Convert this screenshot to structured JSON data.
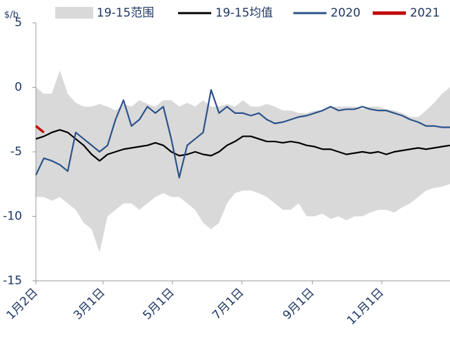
{
  "chart_data": {
    "type": "line",
    "y_label": "$/b",
    "x": [
      0,
      7,
      14,
      21,
      28,
      35,
      42,
      49,
      56,
      63,
      70,
      77,
      84,
      91,
      98,
      105,
      112,
      119,
      126,
      133,
      140,
      147,
      154,
      161,
      168,
      175,
      182,
      189,
      196,
      203,
      210,
      217,
      224,
      231,
      238,
      245,
      252,
      259,
      266,
      273,
      280,
      287,
      294,
      301,
      308,
      315,
      322,
      329,
      336,
      343,
      350,
      357,
      364
    ],
    "xlim": [
      0,
      364
    ],
    "xticks": [
      {
        "value": 0,
        "label": "1月2日"
      },
      {
        "value": 59,
        "label": "3月1日"
      },
      {
        "value": 120,
        "label": "5月1日"
      },
      {
        "value": 181,
        "label": "7月1日"
      },
      {
        "value": 243,
        "label": "9月1日"
      },
      {
        "value": 304,
        "label": "11月1日"
      }
    ],
    "ylim": [
      -15,
      5
    ],
    "yticks": [
      5,
      0,
      -5,
      -10,
      -15
    ],
    "range": {
      "name": "19-15范围",
      "color": "#d9d9d9",
      "upper": [
        0,
        -0.5,
        -0.5,
        1.3,
        -0.5,
        -1.2,
        -1.5,
        -1.5,
        -1.3,
        -1.5,
        -1.8,
        -1.3,
        -1.5,
        -1,
        -1.3,
        -1.5,
        -1,
        -1,
        -1.5,
        -1.2,
        -1.5,
        -1,
        -1.5,
        -1.5,
        -1.3,
        -1.5,
        -1,
        -1.5,
        -1.5,
        -1.3,
        -1.5,
        -1.8,
        -1.8,
        -2,
        -2,
        -1.8,
        -1.8,
        -1.5,
        -1.5,
        -1.5,
        -1.5,
        -1.7,
        -1.5,
        -1.5,
        -1.7,
        -1.8,
        -2,
        -2.3,
        -2.3,
        -1.8,
        -1.2,
        -0.5,
        0
      ],
      "lower": [
        -8.5,
        -8.5,
        -8.8,
        -8.5,
        -9,
        -9.5,
        -10.5,
        -11,
        -12.8,
        -10,
        -9.5,
        -9,
        -9,
        -9.5,
        -9,
        -8.5,
        -8.2,
        -8.5,
        -8.5,
        -9,
        -9.5,
        -10.5,
        -11,
        -10.5,
        -9,
        -8.2,
        -8,
        -8,
        -8.2,
        -8.5,
        -9,
        -9.5,
        -9.5,
        -9,
        -10,
        -10,
        -9.8,
        -10.2,
        -10,
        -10.3,
        -10,
        -10,
        -9.7,
        -9.5,
        -9.5,
        -9.7,
        -9.3,
        -9,
        -8.5,
        -8,
        -7.8,
        -7.7,
        -7.5
      ]
    },
    "series": [
      {
        "name": "19-15均值",
        "color": "#000000",
        "values": [
          -4,
          -3.8,
          -3.5,
          -3.3,
          -3.5,
          -4,
          -4.5,
          -5.2,
          -5.7,
          -5.2,
          -5,
          -4.8,
          -4.7,
          -4.6,
          -4.5,
          -4.3,
          -4.5,
          -5,
          -5.3,
          -5.2,
          -5,
          -5.2,
          -5.3,
          -5,
          -4.5,
          -4.2,
          -3.8,
          -3.8,
          -4,
          -4.2,
          -4.2,
          -4.3,
          -4.2,
          -4.3,
          -4.5,
          -4.6,
          -4.8,
          -4.8,
          -5,
          -5.2,
          -5.1,
          -5,
          -5.1,
          -5,
          -5.2,
          -5,
          -4.9,
          -4.8,
          -4.7,
          -4.8,
          -4.7,
          -4.6,
          -4.5
        ]
      },
      {
        "name": "2020",
        "color": "#2a528a",
        "values": [
          -6.8,
          -5.5,
          -5.7,
          -6,
          -6.5,
          -3.5,
          -4,
          -4.5,
          -5,
          -4.5,
          -2.5,
          -1,
          -3,
          -2.5,
          -1.5,
          -2,
          -1.5,
          -4,
          -7,
          -4.5,
          -4,
          -3.5,
          -0.2,
          -2,
          -1.5,
          -2,
          -2,
          -2.2,
          -2,
          -2.5,
          -2.8,
          -2.7,
          -2.5,
          -2.3,
          -2.2,
          -2,
          -1.8,
          -1.5,
          -1.8,
          -1.7,
          -1.7,
          -1.5,
          -1.7,
          -1.8,
          -1.8,
          -2,
          -2.2,
          -2.5,
          -2.7,
          -3,
          -3,
          -3.1,
          -3.1
        ]
      },
      {
        "name": "2021",
        "color": "#c00000",
        "values": [
          -3,
          -3.5,
          null,
          null,
          null,
          null,
          null,
          null,
          null,
          null,
          null,
          null,
          null,
          null,
          null,
          null,
          null,
          null,
          null,
          null,
          null,
          null,
          null,
          null,
          null,
          null,
          null,
          null,
          null,
          null,
          null,
          null,
          null,
          null,
          null,
          null,
          null,
          null,
          null,
          null,
          null,
          null,
          null,
          null,
          null,
          null,
          null,
          null,
          null,
          null,
          null,
          null,
          null
        ]
      }
    ]
  }
}
